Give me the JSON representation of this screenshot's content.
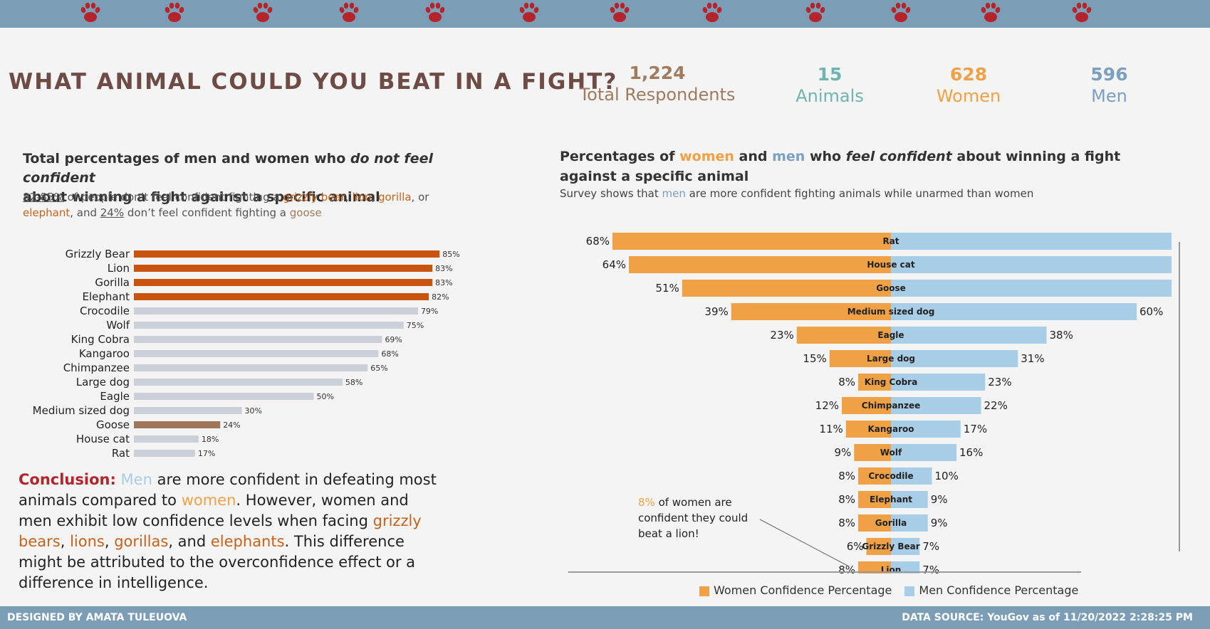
{
  "header": {
    "paw_icon": "paw-print-icon",
    "paw_color": "#b5232b",
    "bar_color": "#7b9db5"
  },
  "title": "WHAT ANIMAL COULD YOU BEAT IN A FIGHT?",
  "stats": [
    {
      "value": "1,224",
      "label": "Total Respondents",
      "color": "#a07b5e"
    },
    {
      "value": "15",
      "label": "Animals",
      "color": "#6fb3b0"
    },
    {
      "value": "628",
      "label": "Women",
      "color": "#f0a146"
    },
    {
      "value": "596",
      "label": "Men",
      "color": "#7a9fc0"
    }
  ],
  "left": {
    "heading_1": "Total percentages of men and women who ",
    "heading_em": "do not feel confident",
    "heading_2": "about winning a fight against a specific animal",
    "sub": {
      "range": "82-85%",
      "t1": " of people don’t feel confident fighting a ",
      "a1": "grizzly bear",
      "sep1": ", ",
      "a2": "lion",
      "sep2": ", ",
      "a3": "gorilla",
      "sep3": ", or ",
      "a4": "elephant",
      "t2": ", and ",
      "pct": "24%",
      "t3": " don’t feel confident fighting a ",
      "a5": "goose"
    }
  },
  "right": {
    "h1": "Percentages of ",
    "h_women": "women",
    "h2": " and ",
    "h_men": "men",
    "h3": " who ",
    "h_em": "feel confident",
    "h4": " about winning a fight against a specific animal",
    "sub1": "Survey shows that ",
    "sub_men": "men",
    "sub2": " are more confident fighting animals while unarmed than women"
  },
  "annotation": {
    "pct": "8%",
    "text": " of women are confident they could beat a lion!"
  },
  "conclusion": {
    "label": "Conclusion:",
    "men": "Men",
    "t1": " are more confident in defeating most animals compared to ",
    "women": "women",
    "t2": ". However, women and men exhibit low confidence levels when facing ",
    "a1": "grizzly bears",
    "c1": ", ",
    "a2": "lions",
    "c2": ", ",
    "a3": "gorillas",
    "c3": ", and ",
    "a4": "elephants",
    "t3": ". This difference might be attributed to the overconfidence effect or a difference in intelligence."
  },
  "legend": {
    "women": "Women Confidence Percentage",
    "men": "Men Confidence Percentage"
  },
  "footer": {
    "left": "DESIGNED BY AMATA TULEUOVA",
    "right": "DATA SOURCE: YouGov as of 11/20/2022 2:28:25 PM"
  },
  "chart_data": [
    {
      "type": "bar",
      "orientation": "horizontal",
      "categories": [
        "Grizzly Bear",
        "Lion",
        "Gorilla",
        "Elephant",
        "Crocodile",
        "Wolf",
        "King Cobra",
        "Kangaroo",
        "Chimpanzee",
        "Large dog",
        "Eagle",
        "Medium sized dog",
        "Goose",
        "House cat",
        "Rat"
      ],
      "values": [
        85,
        83,
        83,
        82,
        79,
        75,
        69,
        68,
        65,
        58,
        50,
        30,
        24,
        18,
        17
      ],
      "value_labels": [
        "85%",
        "83%",
        "83%",
        "82%",
        "79%",
        "75%",
        "69%",
        "68%",
        "65%",
        "58%",
        "50%",
        "30%",
        "24%",
        "18%",
        "17%"
      ],
      "colors": [
        "#c8540f",
        "#c8540f",
        "#c8540f",
        "#c8540f",
        "#cbd0d8",
        "#cbd0d8",
        "#cbd0d8",
        "#cbd0d8",
        "#cbd0d8",
        "#cbd0d8",
        "#cbd0d8",
        "#cbd0d8",
        "#a0765a",
        "#cbd0d8",
        "#cbd0d8"
      ],
      "xlim": [
        0,
        100
      ]
    },
    {
      "type": "bar",
      "orientation": "diverging",
      "categories": [
        "Rat",
        "House cat",
        "Goose",
        "Medium sized dog",
        "Eagle",
        "Large dog",
        "King Cobra",
        "Chimpanzee",
        "Kangaroo",
        "Wolf",
        "Crocodile",
        "Elephant",
        "Gorilla",
        "Grizzly Bear",
        "Lion"
      ],
      "series": [
        {
          "name": "Women Confidence Percentage",
          "color": "#f0a146",
          "values": [
            68,
            64,
            51,
            39,
            23,
            15,
            8,
            12,
            11,
            9,
            8,
            8,
            8,
            6,
            8
          ],
          "labels": [
            "68%",
            "64%",
            "51%",
            "39%",
            "23%",
            "15%",
            "8%",
            "12%",
            "11%",
            "9%",
            "8%",
            "8%",
            "8%",
            "6%",
            "8%"
          ]
        },
        {
          "name": "Men Confidence Percentage",
          "color": "#a8cde6",
          "values": [
            69,
            69,
            69,
            60,
            38,
            31,
            23,
            22,
            17,
            16,
            10,
            9,
            9,
            7,
            7
          ],
          "labels": [
            "",
            "",
            "",
            "60%",
            "38%",
            "31%",
            "23%",
            "22%",
            "17%",
            "16%",
            "10%",
            "9%",
            "9%",
            "7%",
            "7%"
          ]
        }
      ]
    }
  ]
}
